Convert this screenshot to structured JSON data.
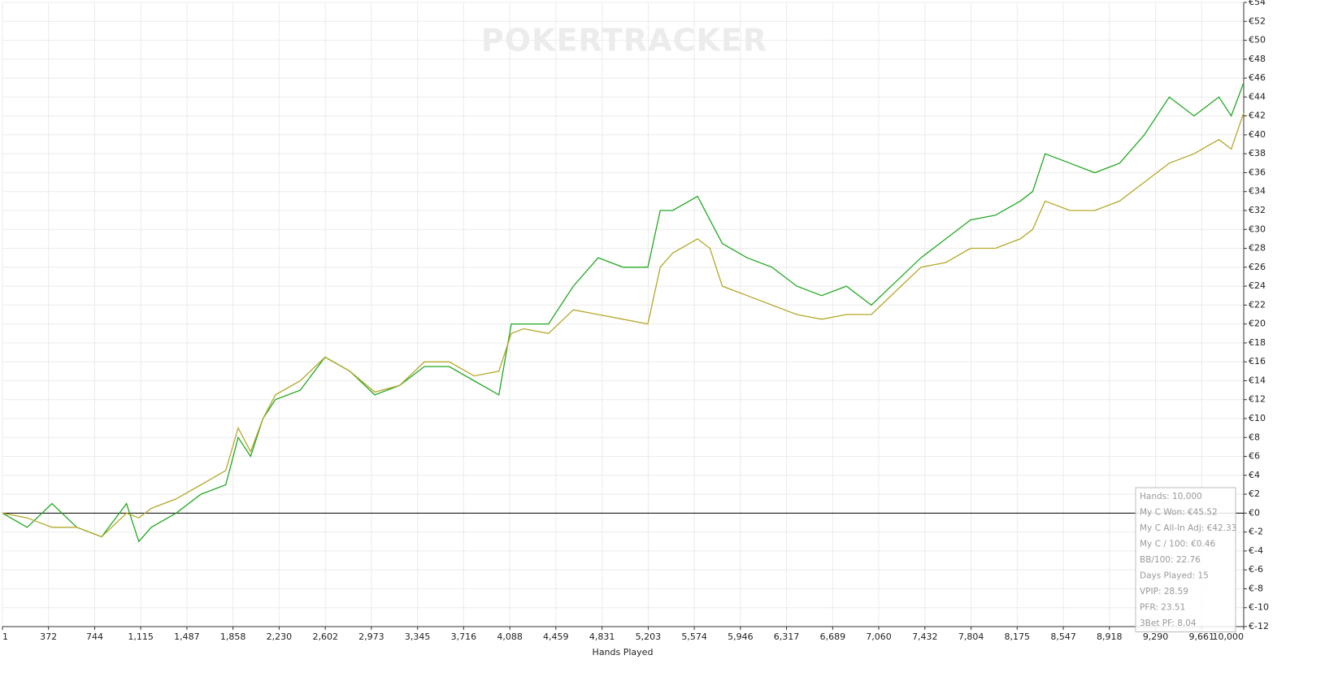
{
  "chart_data": {
    "type": "line",
    "watermark": "POKERTRACKER",
    "xlabel": "Hands Played",
    "x": [
      1,
      200,
      400,
      600,
      800,
      1000,
      1100,
      1200,
      1400,
      1600,
      1800,
      1900,
      2000,
      2100,
      2200,
      2400,
      2600,
      2800,
      3000,
      3200,
      3400,
      3600,
      3800,
      4000,
      4100,
      4200,
      4400,
      4600,
      4800,
      5000,
      5200,
      5300,
      5400,
      5600,
      5700,
      5800,
      6000,
      6200,
      6400,
      6600,
      6800,
      7000,
      7200,
      7400,
      7600,
      7800,
      8000,
      8200,
      8300,
      8400,
      8600,
      8800,
      9000,
      9200,
      9400,
      9600,
      9800,
      9900,
      10000
    ],
    "series": [
      {
        "color": "#22a822",
        "values": [
          0,
          -1.5,
          1,
          -1.5,
          -2.5,
          1,
          -3,
          -1.5,
          0,
          2,
          3,
          8,
          6,
          10,
          12,
          13,
          16.5,
          15,
          12.5,
          13.5,
          15.5,
          15.5,
          14,
          12.5,
          20,
          20,
          20,
          24,
          27,
          26,
          26,
          32,
          32,
          33.5,
          31,
          28.5,
          27,
          26,
          24,
          23,
          24,
          22,
          24.5,
          27,
          29,
          31,
          31.5,
          33,
          34,
          38,
          37,
          36,
          37,
          40,
          44,
          42,
          44,
          42,
          45.52
        ]
      },
      {
        "color": "#b3a82a",
        "values": [
          0,
          -0.5,
          -1.5,
          -1.5,
          -2.5,
          0,
          -0.5,
          0.5,
          1.5,
          3,
          4.5,
          9,
          6.5,
          10,
          12.5,
          14,
          16.5,
          15,
          12.8,
          13.5,
          16,
          16,
          14.5,
          15,
          19,
          19.5,
          19,
          21.5,
          21,
          20.5,
          20,
          26,
          27.5,
          29,
          28,
          24,
          23,
          22,
          21,
          20.5,
          21,
          21,
          23.5,
          26,
          26.5,
          28,
          28,
          29,
          30,
          33,
          32,
          32,
          33,
          35,
          37,
          38,
          39.5,
          38.5,
          42.33
        ]
      }
    ],
    "xlim": [
      1,
      10000
    ],
    "xticks": [
      1,
      372,
      744,
      {
        "value": 1115,
        "label": "1,115"
      },
      {
        "value": 1487,
        "label": "1,487"
      },
      {
        "value": 1858,
        "label": "1,858"
      },
      {
        "value": 2230,
        "label": "2,230"
      },
      {
        "value": 2602,
        "label": "2,602"
      },
      {
        "value": 2973,
        "label": "2,973"
      },
      {
        "value": 3345,
        "label": "3,345"
      },
      {
        "value": 3716,
        "label": "3,716"
      },
      {
        "value": 4088,
        "label": "4,088"
      },
      {
        "value": 4459,
        "label": "4,459"
      },
      {
        "value": 4831,
        "label": "4,831"
      },
      {
        "value": 5203,
        "label": "5,203"
      },
      {
        "value": 5574,
        "label": "5,574"
      },
      {
        "value": 5946,
        "label": "5,946"
      },
      {
        "value": 6317,
        "label": "6,317"
      },
      {
        "value": 6689,
        "label": "6,689"
      },
      {
        "value": 7060,
        "label": "7,060"
      },
      {
        "value": 7432,
        "label": "7,432"
      },
      {
        "value": 7804,
        "label": "7,804"
      },
      {
        "value": 8175,
        "label": "8,175"
      },
      {
        "value": 8547,
        "label": "8,547"
      },
      {
        "value": 8918,
        "label": "8,918"
      },
      {
        "value": 9290,
        "label": "9,290"
      },
      {
        "value": 9661,
        "label": "9,661"
      },
      {
        "value": 10000,
        "label": "10,000"
      }
    ],
    "ylim": [
      -12,
      54
    ],
    "yticks": [
      {
        "value": 54,
        "label": "€54"
      },
      {
        "value": 52,
        "label": "€52"
      },
      {
        "value": 50,
        "label": "€50"
      },
      {
        "value": 48,
        "label": "€48"
      },
      {
        "value": 46,
        "label": "€46"
      },
      {
        "value": 44,
        "label": "€44"
      },
      {
        "value": 42,
        "label": "€42"
      },
      {
        "value": 40,
        "label": "€40"
      },
      {
        "value": 38,
        "label": "€38"
      },
      {
        "value": 36,
        "label": "€36"
      },
      {
        "value": 34,
        "label": "€34"
      },
      {
        "value": 32,
        "label": "€32"
      },
      {
        "value": 30,
        "label": "€30"
      },
      {
        "value": 28,
        "label": "€28"
      },
      {
        "value": 26,
        "label": "€26"
      },
      {
        "value": 24,
        "label": "€24"
      },
      {
        "value": 22,
        "label": "€22"
      },
      {
        "value": 20,
        "label": "€20"
      },
      {
        "value": 18,
        "label": "€18"
      },
      {
        "value": 16,
        "label": "€16"
      },
      {
        "value": 14,
        "label": "€14"
      },
      {
        "value": 12,
        "label": "€12"
      },
      {
        "value": 10,
        "label": "€10"
      },
      {
        "value": 8,
        "label": "€8"
      },
      {
        "value": 6,
        "label": "€6"
      },
      {
        "value": 4,
        "label": "€4"
      },
      {
        "value": 2,
        "label": "€2"
      },
      {
        "value": 0,
        "label": "€0"
      },
      {
        "value": -2,
        "label": "€-2"
      },
      {
        "value": -4,
        "label": "€-4"
      },
      {
        "value": -6,
        "label": "€-6"
      },
      {
        "value": -8,
        "label": "€-8"
      },
      {
        "value": -10,
        "label": "€-10"
      },
      {
        "value": -12,
        "label": "€-12"
      }
    ],
    "grid": true,
    "stats": [
      "Hands: 10,000",
      "My C Won: €45.52",
      "My C All-In Adj: €42.33",
      "My C / 100: €0.46",
      "BB/100: 22.76",
      "Days Played: 15",
      "VPIP: 28.59",
      "PFR: 23.51",
      "3Bet PF: 8.04"
    ]
  }
}
